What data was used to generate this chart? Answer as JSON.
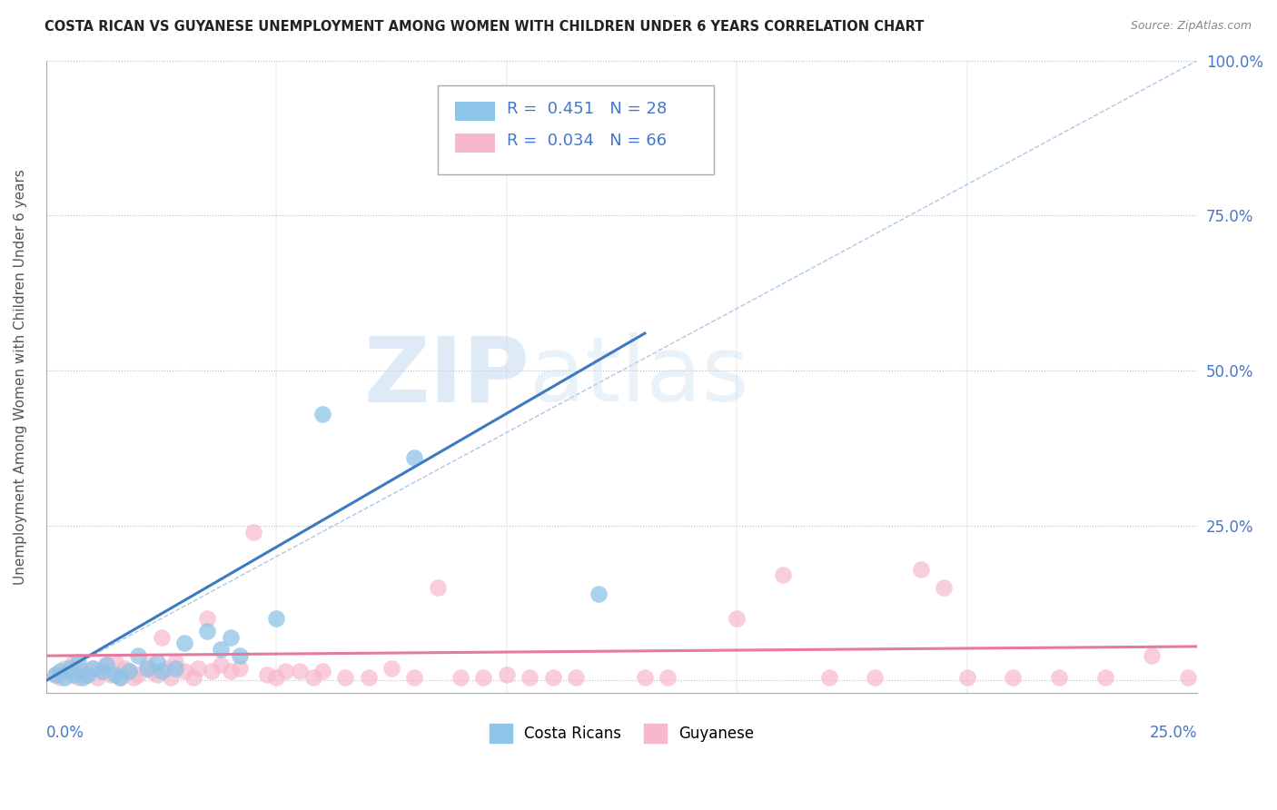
{
  "title": "COSTA RICAN VS GUYANESE UNEMPLOYMENT AMONG WOMEN WITH CHILDREN UNDER 6 YEARS CORRELATION CHART",
  "source": "Source: ZipAtlas.com",
  "ylabel": "Unemployment Among Women with Children Under 6 years",
  "xlim": [
    0.0,
    0.25
  ],
  "ylim": [
    -0.02,
    1.0
  ],
  "yticks": [
    0.0,
    0.25,
    0.5,
    0.75,
    1.0
  ],
  "ytick_labels": [
    "",
    "25.0%",
    "50.0%",
    "75.0%",
    "100.0%"
  ],
  "watermark_zip": "ZIP",
  "watermark_atlas": "atlas",
  "legend_blue_r": "R = 0.451",
  "legend_blue_n": "N = 28",
  "legend_pink_r": "R = 0.034",
  "legend_pink_n": "N = 66",
  "blue_color": "#8ec4e8",
  "pink_color": "#f7b8cc",
  "blue_line_color": "#3a7abf",
  "pink_line_color": "#e8799e",
  "blue_scatter": [
    [
      0.002,
      0.01
    ],
    [
      0.003,
      0.015
    ],
    [
      0.004,
      0.005
    ],
    [
      0.005,
      0.02
    ],
    [
      0.006,
      0.01
    ],
    [
      0.007,
      0.03
    ],
    [
      0.008,
      0.005
    ],
    [
      0.009,
      0.01
    ],
    [
      0.01,
      0.02
    ],
    [
      0.012,
      0.015
    ],
    [
      0.013,
      0.025
    ],
    [
      0.015,
      0.01
    ],
    [
      0.016,
      0.005
    ],
    [
      0.018,
      0.015
    ],
    [
      0.02,
      0.04
    ],
    [
      0.022,
      0.02
    ],
    [
      0.024,
      0.03
    ],
    [
      0.025,
      0.015
    ],
    [
      0.028,
      0.02
    ],
    [
      0.03,
      0.06
    ],
    [
      0.035,
      0.08
    ],
    [
      0.038,
      0.05
    ],
    [
      0.04,
      0.07
    ],
    [
      0.042,
      0.04
    ],
    [
      0.05,
      0.1
    ],
    [
      0.06,
      0.43
    ],
    [
      0.08,
      0.36
    ],
    [
      0.12,
      0.14
    ]
  ],
  "pink_scatter": [
    [
      0.002,
      0.01
    ],
    [
      0.003,
      0.005
    ],
    [
      0.004,
      0.02
    ],
    [
      0.005,
      0.015
    ],
    [
      0.006,
      0.03
    ],
    [
      0.007,
      0.005
    ],
    [
      0.008,
      0.015
    ],
    [
      0.009,
      0.01
    ],
    [
      0.01,
      0.02
    ],
    [
      0.011,
      0.005
    ],
    [
      0.012,
      0.015
    ],
    [
      0.013,
      0.025
    ],
    [
      0.014,
      0.01
    ],
    [
      0.015,
      0.03
    ],
    [
      0.016,
      0.005
    ],
    [
      0.017,
      0.02
    ],
    [
      0.018,
      0.015
    ],
    [
      0.019,
      0.005
    ],
    [
      0.02,
      0.01
    ],
    [
      0.022,
      0.025
    ],
    [
      0.023,
      0.015
    ],
    [
      0.024,
      0.01
    ],
    [
      0.025,
      0.07
    ],
    [
      0.026,
      0.02
    ],
    [
      0.027,
      0.005
    ],
    [
      0.028,
      0.03
    ],
    [
      0.03,
      0.015
    ],
    [
      0.032,
      0.005
    ],
    [
      0.033,
      0.02
    ],
    [
      0.035,
      0.1
    ],
    [
      0.036,
      0.015
    ],
    [
      0.038,
      0.025
    ],
    [
      0.04,
      0.015
    ],
    [
      0.042,
      0.02
    ],
    [
      0.045,
      0.24
    ],
    [
      0.048,
      0.01
    ],
    [
      0.05,
      0.005
    ],
    [
      0.052,
      0.015
    ],
    [
      0.055,
      0.015
    ],
    [
      0.058,
      0.005
    ],
    [
      0.06,
      0.015
    ],
    [
      0.065,
      0.005
    ],
    [
      0.07,
      0.005
    ],
    [
      0.075,
      0.02
    ],
    [
      0.08,
      0.005
    ],
    [
      0.085,
      0.15
    ],
    [
      0.09,
      0.005
    ],
    [
      0.095,
      0.005
    ],
    [
      0.1,
      0.01
    ],
    [
      0.105,
      0.005
    ],
    [
      0.11,
      0.005
    ],
    [
      0.115,
      0.005
    ],
    [
      0.13,
      0.005
    ],
    [
      0.135,
      0.005
    ],
    [
      0.15,
      0.1
    ],
    [
      0.16,
      0.17
    ],
    [
      0.17,
      0.005
    ],
    [
      0.18,
      0.005
    ],
    [
      0.19,
      0.18
    ],
    [
      0.195,
      0.15
    ],
    [
      0.2,
      0.005
    ],
    [
      0.21,
      0.005
    ],
    [
      0.22,
      0.005
    ],
    [
      0.23,
      0.005
    ],
    [
      0.24,
      0.04
    ],
    [
      0.248,
      0.005
    ]
  ],
  "blue_line_x": [
    0.0,
    0.13
  ],
  "blue_line_y": [
    0.0,
    0.56
  ],
  "pink_line_x": [
    0.0,
    0.25
  ],
  "pink_line_y": [
    0.04,
    0.055
  ],
  "ref_line_x": [
    0.0,
    0.25
  ],
  "ref_line_y": [
    0.0,
    1.0
  ]
}
